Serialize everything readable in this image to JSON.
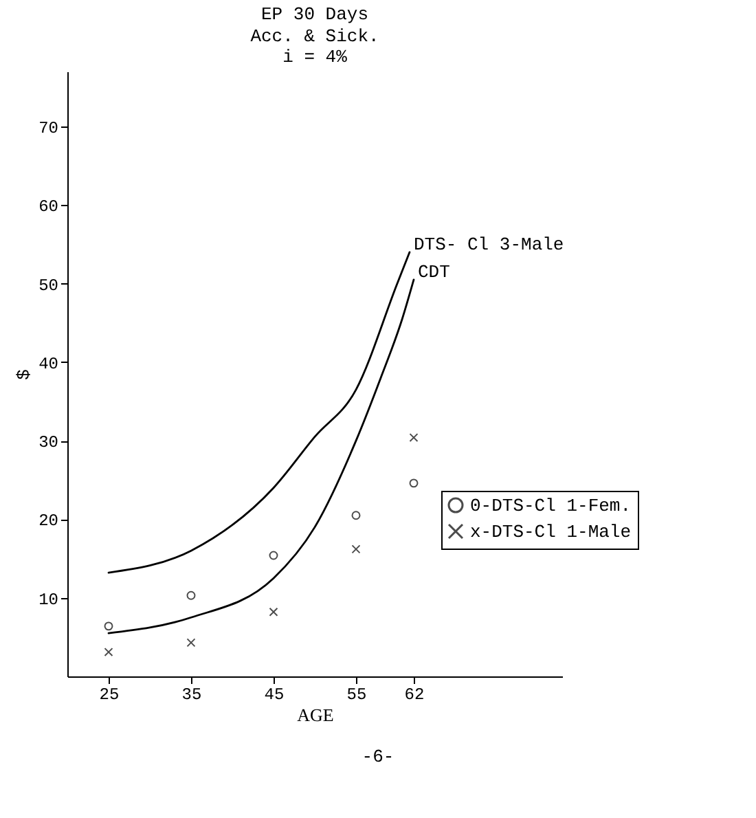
{
  "chart_data": {
    "type": "line",
    "title": "EP 30 Days",
    "subtitle": "Acc. & Sick.\ni = 4%",
    "xlabel": "AGE",
    "ylabel": "$",
    "annotations": [
      "-6-"
    ],
    "xlim": [
      20,
      80
    ],
    "xticks": [
      25,
      35,
      45,
      55,
      62
    ],
    "ylim": [
      0,
      77
    ],
    "yticks": [
      10,
      20,
      30,
      40,
      50,
      60,
      70
    ],
    "grid": false,
    "legend": "bottom right",
    "line_style": "solid",
    "series": [
      {
        "name": "DTS- Cl 3-Male",
        "color": "#000000",
        "x": [
          25,
          35,
          45,
          50,
          55,
          60,
          61.5
        ],
        "values": [
          13.2,
          16,
          24,
          30.5,
          36.5,
          50,
          54
        ]
      },
      {
        "name": "CDT",
        "color": "#000000",
        "x": [
          25,
          35,
          45,
          50,
          55,
          58,
          60.6,
          62
        ],
        "values": [
          5.5,
          7.5,
          12.5,
          19,
          30,
          38,
          45.5,
          50.5
        ]
      },
      {
        "name": "0-DTS-Cl 1-Fem.",
        "type": "scatter",
        "marker": "circle",
        "color": "#000000",
        "x": [
          25,
          35,
          45,
          55,
          62
        ],
        "values": [
          6.4,
          10.3,
          15.4,
          20.5,
          24.6
        ]
      },
      {
        "name": "x-DTS-Cl 1-Male",
        "type": "scatter",
        "marker": "cross",
        "color": "#000000",
        "x": [
          25,
          35,
          45,
          55,
          62
        ],
        "values": [
          3.1,
          4.3,
          8.2,
          16.2,
          30.4
        ]
      }
    ]
  }
}
